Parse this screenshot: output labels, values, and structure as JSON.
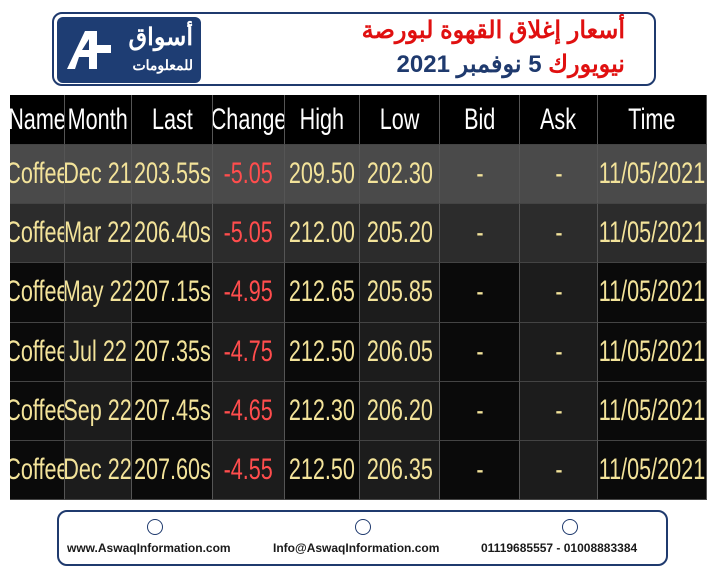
{
  "header": {
    "logo_line1": "أسواق",
    "logo_line2": "للمعلومات",
    "title_line1": "أسعار إغلاق القهوة لبورصة",
    "title_line2_red": "نيويورك",
    "title_line2_blue": "5 نوفمبر 2021"
  },
  "table": {
    "columns": [
      "Name",
      "Month",
      "Last",
      "Change",
      "High",
      "Low",
      "Bid",
      "Ask",
      "Time"
    ],
    "rows": [
      [
        "Coffee",
        "Dec 21",
        "203.55s",
        "-5.05",
        "209.50",
        "202.30",
        "-",
        "-",
        "11/05/2021"
      ],
      [
        "Coffee",
        "Mar 22",
        "206.40s",
        "-5.05",
        "212.00",
        "205.20",
        "-",
        "-",
        "11/05/2021"
      ],
      [
        "Coffee",
        "May 22",
        "207.15s",
        "-4.95",
        "212.65",
        "205.85",
        "-",
        "-",
        "11/05/2021"
      ],
      [
        "Coffee",
        "Jul 22",
        "207.35s",
        "-4.75",
        "212.50",
        "206.05",
        "-",
        "-",
        "11/05/2021"
      ],
      [
        "Coffee",
        "Sep 22",
        "207.45s",
        "-4.65",
        "212.30",
        "206.20",
        "-",
        "-",
        "11/05/2021"
      ],
      [
        "Coffee",
        "Dec 22",
        "207.60s",
        "-4.55",
        "212.50",
        "206.35",
        "-",
        "-",
        "11/05/2021"
      ]
    ]
  },
  "footer": {
    "website": "www.AswaqInformation.com",
    "email": "Info@AswaqInformation.com",
    "phones": "01119685557 - 01008883384"
  }
}
